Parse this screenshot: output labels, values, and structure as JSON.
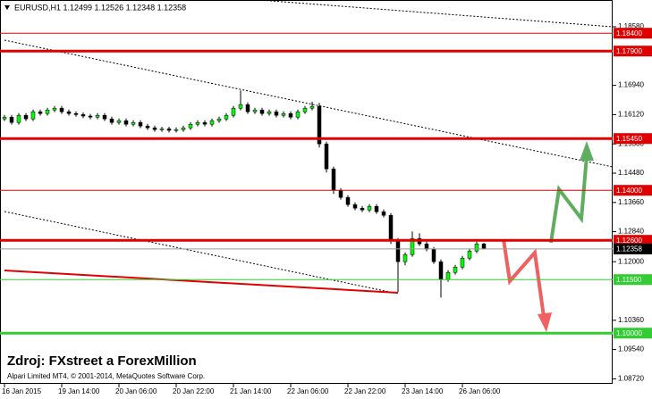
{
  "chart_data": {
    "type": "candlestick",
    "title": "EURUSD,H1  1.12499 1.12526 1.12348 1.12358",
    "source": "Zdroj: FXstreet a ForexMillion",
    "credit": "Alpari Limited MT4, © 2001-2014, MetaQuotes Software Corp.",
    "x": [
      0,
      1,
      2,
      3,
      4,
      5,
      6,
      7,
      8,
      9,
      10,
      11,
      12,
      13,
      14,
      15,
      16,
      17,
      18,
      19,
      20,
      21,
      22,
      23,
      24,
      25,
      26,
      27,
      28,
      29,
      30,
      31,
      32,
      33,
      34,
      35,
      36,
      37,
      38,
      39,
      40,
      41,
      42,
      43,
      44,
      45,
      46,
      47,
      48,
      49,
      50,
      51,
      52,
      53,
      54,
      55,
      56,
      57,
      58,
      59,
      60,
      61,
      62,
      63,
      64,
      65,
      66,
      67
    ],
    "open": [
      1.16,
      1.1605,
      1.159,
      1.161,
      1.16,
      1.162,
      1.1615,
      1.1625,
      1.163,
      1.162,
      1.1615,
      1.1612,
      1.1608,
      1.1605,
      1.161,
      1.16,
      1.159,
      1.1595,
      1.1585,
      1.159,
      1.158,
      1.1575,
      1.157,
      1.1572,
      1.1568,
      1.157,
      1.1575,
      1.1585,
      1.159,
      1.1585,
      1.1595,
      1.16,
      1.161,
      1.163,
      1.164,
      1.162,
      1.1625,
      1.1615,
      1.162,
      1.161,
      1.1615,
      1.1605,
      1.162,
      1.163,
      1.1635,
      1.153,
      1.146,
      1.14,
      1.138,
      1.136,
      1.135,
      1.1345,
      1.1355,
      1.134,
      1.133,
      1.126,
      1.12,
      1.122,
      1.1265,
      1.125,
      1.1235,
      1.12,
      1.115,
      1.117,
      1.1185,
      1.121,
      1.123,
      1.12499
    ],
    "high": [
      1.1611,
      1.1611,
      1.1616,
      1.1616,
      1.1626,
      1.1626,
      1.1631,
      1.1636,
      1.1636,
      1.1626,
      1.1621,
      1.1618,
      1.1614,
      1.1616,
      1.1616,
      1.1606,
      1.1601,
      1.1601,
      1.1596,
      1.1596,
      1.1586,
      1.1581,
      1.1578,
      1.1578,
      1.1576,
      1.1581,
      1.1591,
      1.1596,
      1.1596,
      1.1601,
      1.1606,
      1.1616,
      1.1636,
      1.168,
      1.1646,
      1.1631,
      1.1631,
      1.1626,
      1.1626,
      1.1621,
      1.1621,
      1.1626,
      1.1636,
      1.1648,
      1.1645,
      1.1536,
      1.1466,
      1.1406,
      1.1386,
      1.1366,
      1.1356,
      1.1361,
      1.1361,
      1.1346,
      1.1336,
      1.1266,
      1.1226,
      1.1285,
      1.128,
      1.1256,
      1.1241,
      1.1206,
      1.1176,
      1.1191,
      1.1216,
      1.1236,
      1.1256,
      1.12526
    ],
    "low": [
      1.1594,
      1.1584,
      1.1584,
      1.1594,
      1.1594,
      1.1609,
      1.1609,
      1.1619,
      1.1614,
      1.1609,
      1.1606,
      1.1602,
      1.1599,
      1.1599,
      1.1594,
      1.1584,
      1.1584,
      1.1579,
      1.1579,
      1.1574,
      1.1569,
      1.1564,
      1.1564,
      1.1562,
      1.1562,
      1.1564,
      1.1569,
      1.1579,
      1.1579,
      1.1579,
      1.1589,
      1.1594,
      1.1604,
      1.1624,
      1.1614,
      1.1614,
      1.1609,
      1.1609,
      1.1604,
      1.1604,
      1.1599,
      1.1599,
      1.1614,
      1.1624,
      1.152,
      1.145,
      1.139,
      1.1374,
      1.1354,
      1.1344,
      1.1339,
      1.1339,
      1.1334,
      1.1324,
      1.125,
      1.1115,
      1.119,
      1.1214,
      1.1244,
      1.1229,
      1.1194,
      1.11,
      1.1144,
      1.1164,
      1.1179,
      1.1204,
      1.1224,
      1.12348
    ],
    "close": [
      1.1605,
      1.159,
      1.161,
      1.16,
      1.162,
      1.1615,
      1.1625,
      1.163,
      1.162,
      1.1615,
      1.1612,
      1.1608,
      1.1605,
      1.161,
      1.16,
      1.159,
      1.1595,
      1.1585,
      1.159,
      1.158,
      1.1575,
      1.157,
      1.1572,
      1.1568,
      1.157,
      1.1575,
      1.1585,
      1.159,
      1.1585,
      1.1595,
      1.16,
      1.161,
      1.163,
      1.164,
      1.162,
      1.1625,
      1.1615,
      1.162,
      1.161,
      1.1615,
      1.1605,
      1.162,
      1.163,
      1.1635,
      1.153,
      1.146,
      1.14,
      1.138,
      1.136,
      1.135,
      1.1345,
      1.1355,
      1.134,
      1.133,
      1.126,
      1.12,
      1.122,
      1.1265,
      1.125,
      1.1235,
      1.12,
      1.115,
      1.117,
      1.1185,
      1.121,
      1.123,
      1.125,
      1.12358
    ],
    "up_color": "#00ff00",
    "down_color": "#000000",
    "xlim": [
      -0.625,
      85
    ],
    "xticks": [
      {
        "value": 0,
        "label": "16 Jan 2015"
      },
      {
        "value": 8,
        "label": "19 Jan 14:00"
      },
      {
        "value": 16,
        "label": "20 Jan 06:00"
      },
      {
        "value": 24,
        "label": "20 Jan 22:00"
      },
      {
        "value": 32,
        "label": "21 Jan 14:00"
      },
      {
        "value": 40,
        "label": "22 Jan 06:00"
      },
      {
        "value": 48,
        "label": "22 Jan 22:00"
      },
      {
        "value": 56,
        "label": "23 Jan 14:00"
      },
      {
        "value": 64,
        "label": "26 Jan 06:00"
      }
    ],
    "ylim": [
      1.0858,
      1.1933
    ],
    "yticks": [
      {
        "value": 1.1858,
        "label": "1.18580"
      },
      {
        "value": 1.1694,
        "label": "1.16940"
      },
      {
        "value": 1.1612,
        "label": "1.16120"
      },
      {
        "value": 1.153,
        "label": "1.15300"
      },
      {
        "value": 1.1448,
        "label": "1.14480"
      },
      {
        "value": 1.1366,
        "label": "1.13660"
      },
      {
        "value": 1.1284,
        "label": "1.12840"
      },
      {
        "value": 1.12,
        "label": "1.12000"
      },
      {
        "value": 1.1036,
        "label": "1.10360"
      },
      {
        "value": 1.0954,
        "label": "1.09540"
      },
      {
        "value": 1.0872,
        "label": "1.08720"
      }
    ],
    "levels": [
      {
        "value": 1.184,
        "label": "1.18400",
        "color": "#e00000"
      },
      {
        "value": 1.179,
        "label": "1.17900",
        "color": "#e00000"
      },
      {
        "value": 1.1545,
        "label": "1.15450",
        "color": "#e00000"
      },
      {
        "value": 1.14,
        "label": "1.14000",
        "color": "#e00000"
      },
      {
        "value": 1.126,
        "label": "1.12600",
        "color": "#e00000"
      },
      {
        "value": 1.12358,
        "label": "1.12358",
        "color": "#000000"
      },
      {
        "value": 1.115,
        "label": "1.11500",
        "color": "#33cc33"
      },
      {
        "value": 1.1,
        "label": "1.10000",
        "color": "#33cc33"
      }
    ]
  }
}
